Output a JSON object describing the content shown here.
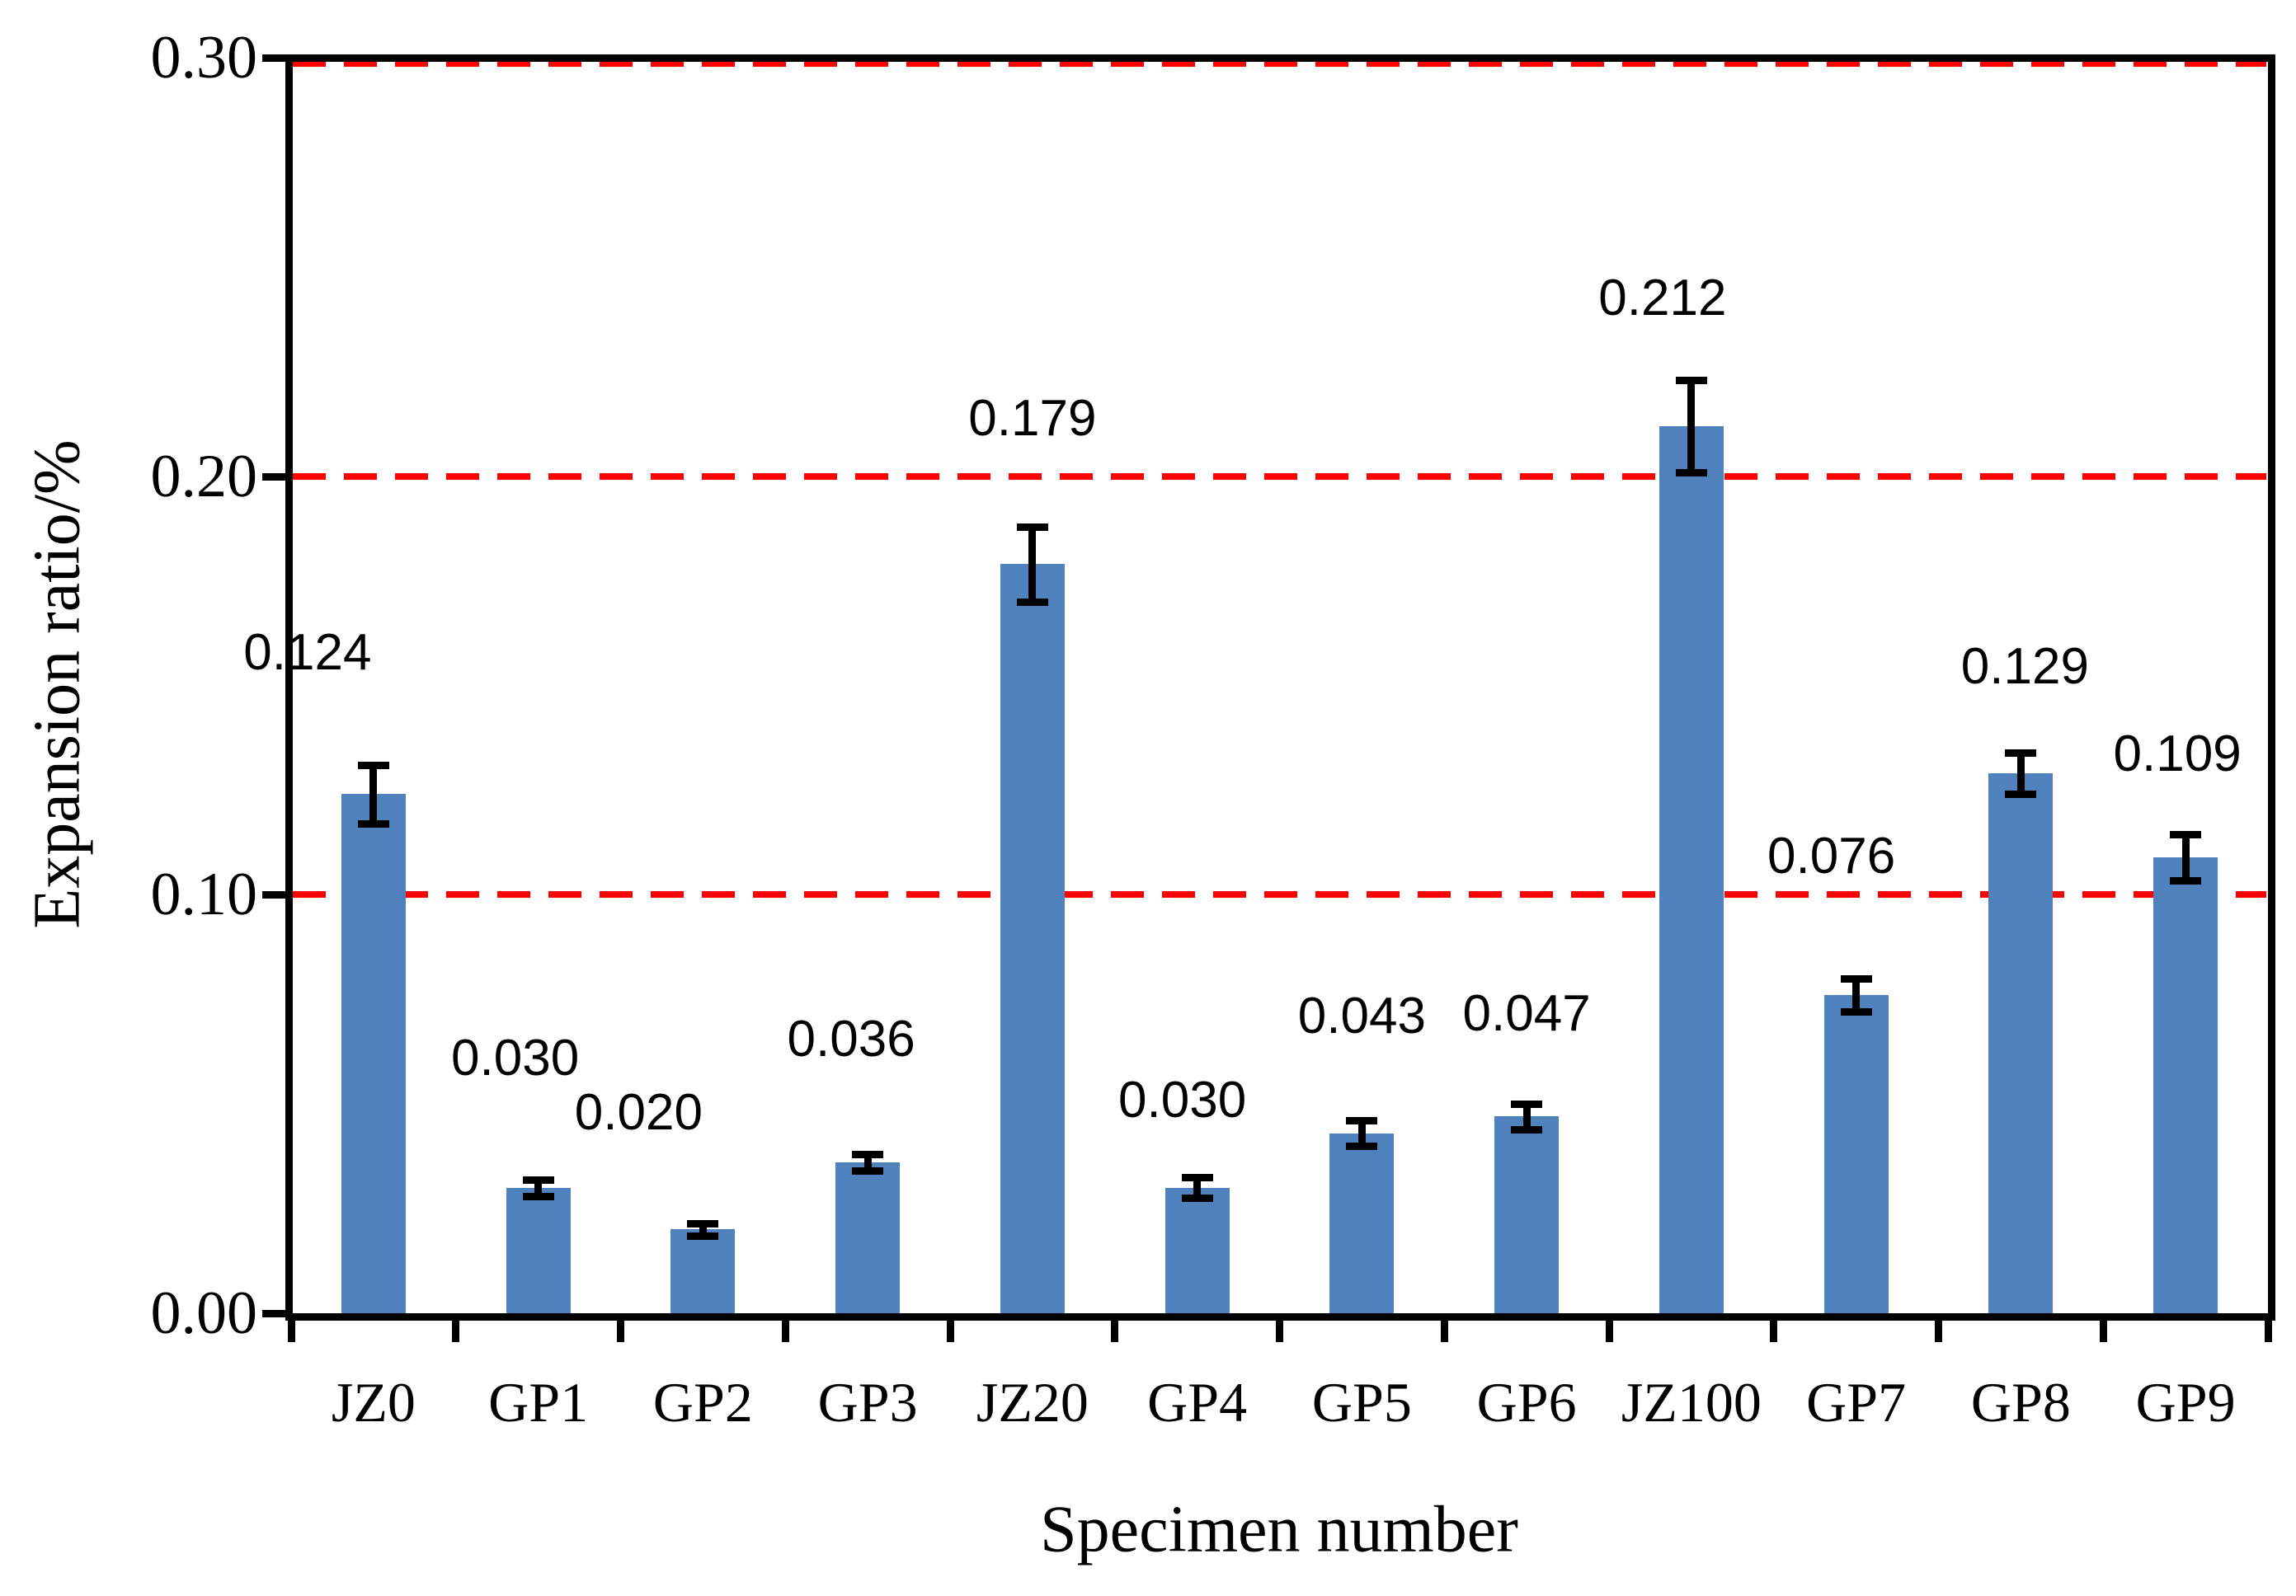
{
  "chart_data": {
    "type": "bar",
    "title": "",
    "xlabel": "Specimen number",
    "ylabel": "Expansion ratio/%",
    "categories": [
      "JZ0",
      "GP1",
      "GP2",
      "GP3",
      "JZ20",
      "GP4",
      "GP5",
      "GP6",
      "JZ100",
      "GP7",
      "GP8",
      "GP9"
    ],
    "values": [
      0.124,
      0.03,
      0.02,
      0.036,
      0.179,
      0.03,
      0.043,
      0.047,
      0.212,
      0.076,
      0.129,
      0.109
    ],
    "data_labels": [
      "0.124",
      "0.030",
      "0.020",
      "0.036",
      "0.179",
      "0.030",
      "0.043",
      "0.047",
      "0.212",
      "0.076",
      "0.129",
      "0.109"
    ],
    "errors": [
      0.007,
      0.002,
      0.0015,
      0.002,
      0.009,
      0.0025,
      0.003,
      0.003,
      0.011,
      0.004,
      0.005,
      0.0055
    ],
    "y_ticks": [
      "0.00",
      "0.10",
      "0.20",
      "0.30"
    ],
    "y_tick_values": [
      0.0,
      0.1,
      0.2,
      0.3
    ],
    "ylim": [
      0.0,
      0.3
    ],
    "reference_lines": [
      0.1,
      0.2,
      0.3
    ],
    "reference_line_style": "dashed",
    "grid": "off",
    "legend": "none",
    "error_bars": "both-ends-with-caps",
    "colors": {
      "bar": "#4F81BD",
      "reference_line": "#FF0000",
      "axis": "#000000",
      "text": "#000000"
    }
  }
}
